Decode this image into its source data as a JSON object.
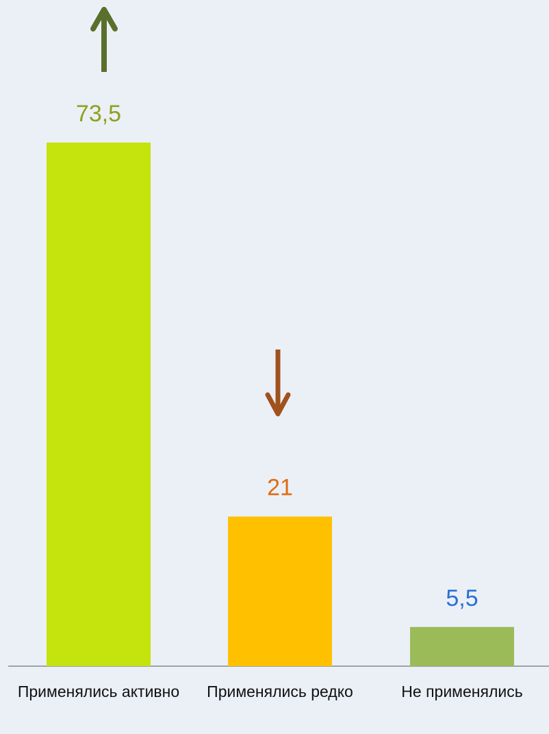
{
  "chart_data": {
    "type": "bar",
    "categories": [
      "Применялись активно",
      "Применялись редко",
      "Не применялись"
    ],
    "values": [
      73.5,
      21,
      5.5
    ],
    "value_labels": [
      "73,5",
      "21",
      "5,5"
    ],
    "colors": [
      "#c5e30c",
      "#ffc000",
      "#9bbb59"
    ],
    "label_colors": [
      "#8fa01c",
      "#e06b12",
      "#2a6fd6"
    ]
  }
}
